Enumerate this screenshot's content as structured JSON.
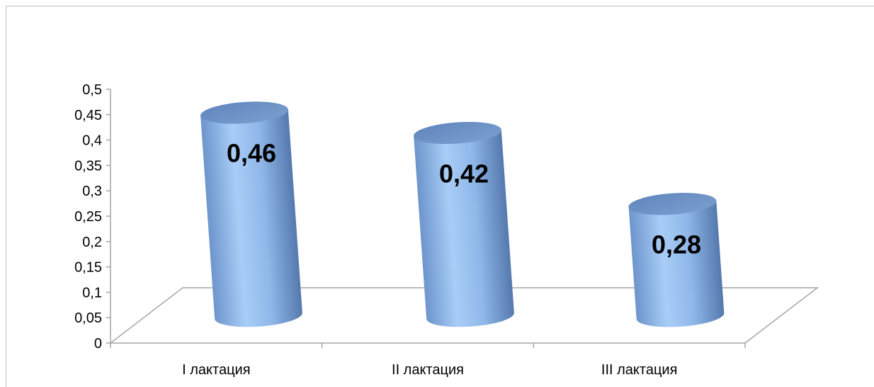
{
  "chart_data": {
    "type": "bar",
    "style": "3d-cylinder",
    "categories": [
      "I лактация",
      "II лактация",
      "III лактация"
    ],
    "values": [
      0.46,
      0.42,
      0.28
    ],
    "data_labels": [
      "0,46",
      "0,42",
      "0,28"
    ],
    "y_ticks": [
      "0",
      "0,05",
      "0,1",
      "0,15",
      "0,2",
      "0,25",
      "0,3",
      "0,35",
      "0,4",
      "0,45",
      "0,5"
    ],
    "ylim": [
      0,
      0.5
    ],
    "grid": false,
    "legend": "none",
    "colors": {
      "bar_light": "#9cc3f2",
      "bar_mid": "#6f99d2",
      "bar_dark": "#4a6fa6",
      "bar_top": "#7093c5",
      "axis": "#a6a6a6"
    }
  }
}
